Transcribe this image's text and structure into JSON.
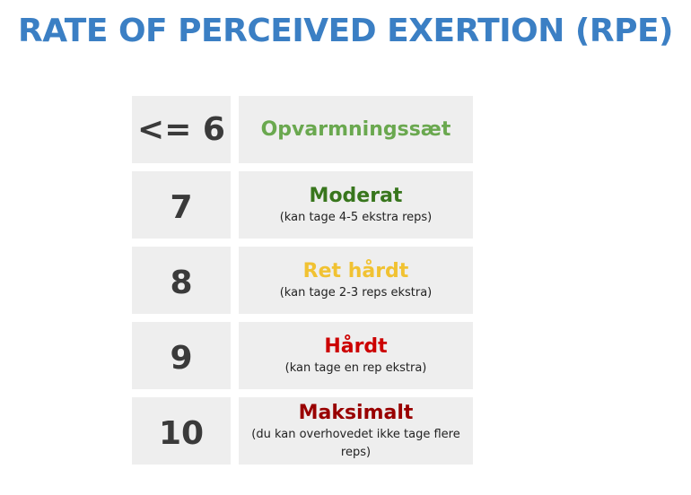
{
  "title": "RATE OF PERCEIVED EXERTION (RPE)",
  "colors": {
    "title": "#3b7fc4",
    "opvarmning": "#6aa84f",
    "moderat": "#38761d",
    "ret_haardt": "#f1c232",
    "haardt": "#cc0000",
    "maksimalt": "#990000"
  },
  "rows": [
    {
      "value": "<= 6",
      "label": "Opvarmningssæt",
      "note": "",
      "color": "#6aa84f"
    },
    {
      "value": "7",
      "label": "Moderat",
      "note": "(kan tage 4-5 ekstra reps)",
      "color": "#38761d"
    },
    {
      "value": "8",
      "label": "Ret hårdt",
      "note": "(kan tage 2-3 reps ekstra)",
      "color": "#f1c232"
    },
    {
      "value": "9",
      "label": "Hårdt",
      "note": "(kan tage en rep ekstra)",
      "color": "#cc0000"
    },
    {
      "value": "10",
      "label": "Maksimalt",
      "note": "(du kan overhovedet ikke tage flere reps)",
      "color": "#990000"
    }
  ]
}
